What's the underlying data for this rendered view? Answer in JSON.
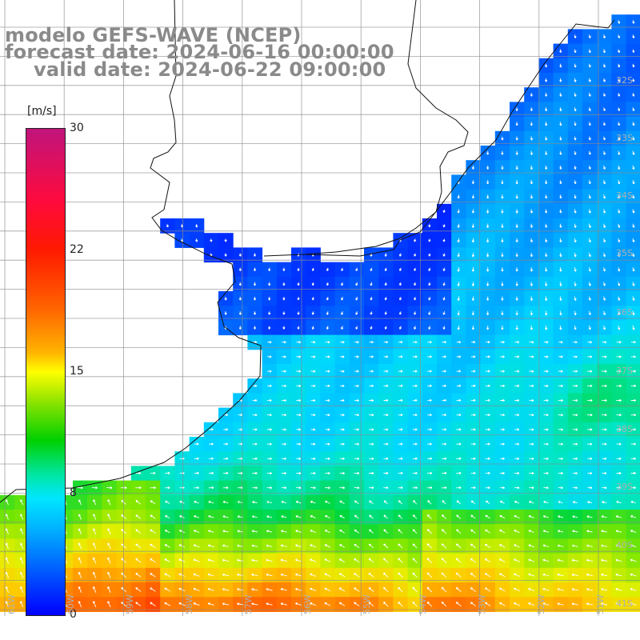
{
  "title_lines": {
    "model": "modelo GEFS-WAVE (NCEP)",
    "forecast": "forecast date: 2024-06-16 00:00:00",
    "valid": "valid date: 2024-06-22 09:00:00"
  },
  "colorbar": {
    "unit": "[m/s]",
    "min": 0,
    "max": 30,
    "ticks": [
      {
        "value": 30,
        "label": "30"
      },
      {
        "value": 22,
        "label": "22"
      },
      {
        "value": 15,
        "label": "15"
      },
      {
        "value": 8,
        "label": "8"
      },
      {
        "value": 0,
        "label": "0"
      }
    ],
    "colors": [
      "#0000ff",
      "#00b4ff",
      "#00e6ff",
      "#00d000",
      "#ffff00",
      "#ff6400",
      "#ff1a00",
      "#c0147c"
    ]
  },
  "map": {
    "lat_labels": [
      "32S",
      "33S",
      "34S",
      "35S",
      "36S",
      "37S",
      "38S",
      "39S",
      "40S",
      "41S"
    ],
    "lon_labels": [
      "61W",
      "60W",
      "59W",
      "58W",
      "57W",
      "56W",
      "55W",
      "54W",
      "53W",
      "52W",
      "51W"
    ],
    "field": "wind speed with direction arrows"
  }
}
